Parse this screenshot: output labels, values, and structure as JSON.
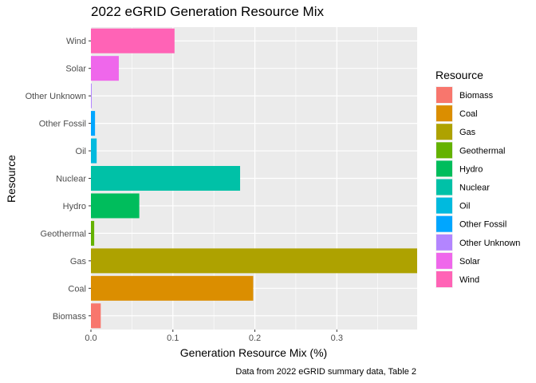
{
  "chart_data": {
    "type": "bar",
    "orientation": "horizontal",
    "title": "2022 eGRID Generation Resource Mix",
    "xlabel": "Generation Resource Mix (%)",
    "ylabel": "Resource",
    "caption": "Data from 2022 eGRID summary data, Table 2",
    "categories": [
      "Biomass",
      "Coal",
      "Gas",
      "Geothermal",
      "Hydro",
      "Nuclear",
      "Oil",
      "Other Fossil",
      "Other Unknown",
      "Solar",
      "Wind"
    ],
    "values": [
      0.012,
      0.198,
      0.398,
      0.004,
      0.059,
      0.182,
      0.007,
      0.005,
      0.001,
      0.034,
      0.102
    ],
    "colors": [
      "#F8766D",
      "#DB8E00",
      "#AEA200",
      "#64B200",
      "#00BD5C",
      "#00C1A7",
      "#00BADE",
      "#00A6FF",
      "#B385FF",
      "#EF67EB",
      "#FF63B6"
    ],
    "xlim": [
      0,
      0.398
    ],
    "xticks": [
      0.0,
      0.1,
      0.2,
      0.3
    ],
    "xtick_labels": [
      "0.0",
      "0.1",
      "0.2",
      "0.3"
    ],
    "grid": true,
    "legend": {
      "title": "Resource",
      "position": "right",
      "entries": [
        "Biomass",
        "Coal",
        "Gas",
        "Geothermal",
        "Hydro",
        "Nuclear",
        "Oil",
        "Other Fossil",
        "Other Unknown",
        "Solar",
        "Wind"
      ]
    }
  }
}
